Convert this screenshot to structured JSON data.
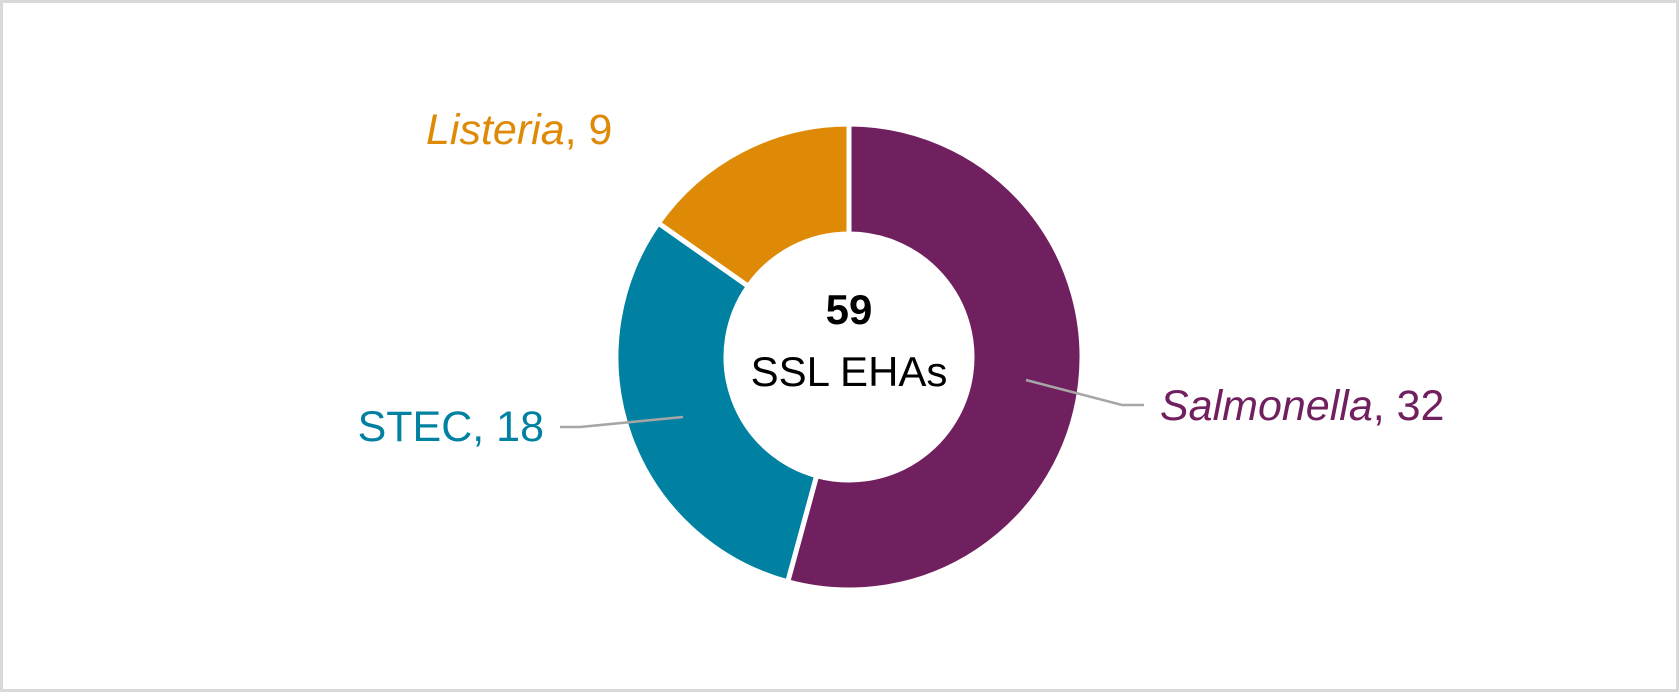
{
  "chart_data": {
    "type": "pie",
    "subtype": "donut",
    "title": "",
    "center_label": {
      "value": "59",
      "text": "SSL EHAs"
    },
    "categories": [
      "Salmonella",
      "STEC",
      "Listeria"
    ],
    "values": [
      32,
      18,
      9
    ],
    "total": 59,
    "colors": [
      "#71205f",
      "#0081a1",
      "#df8a06"
    ],
    "labels": [
      "Salmonella, 32",
      "STEC, 18",
      "Listeria, 9"
    ],
    "legend": "none (data labels with leader lines)"
  },
  "labels": {
    "salmonella": {
      "name": "Salmonella",
      "value": ", 32"
    },
    "stec": {
      "name": "STEC",
      "value": ", 18"
    },
    "listeria": {
      "name": "Listeria",
      "value": ", 9"
    }
  },
  "center": {
    "value": "59",
    "text": "SSL EHAs"
  },
  "colors": {
    "salmonella": "#71205f",
    "stec": "#0081a1",
    "listeria": "#df8a06",
    "leader": "#a6a6a6",
    "border": "#d9d9d9"
  }
}
